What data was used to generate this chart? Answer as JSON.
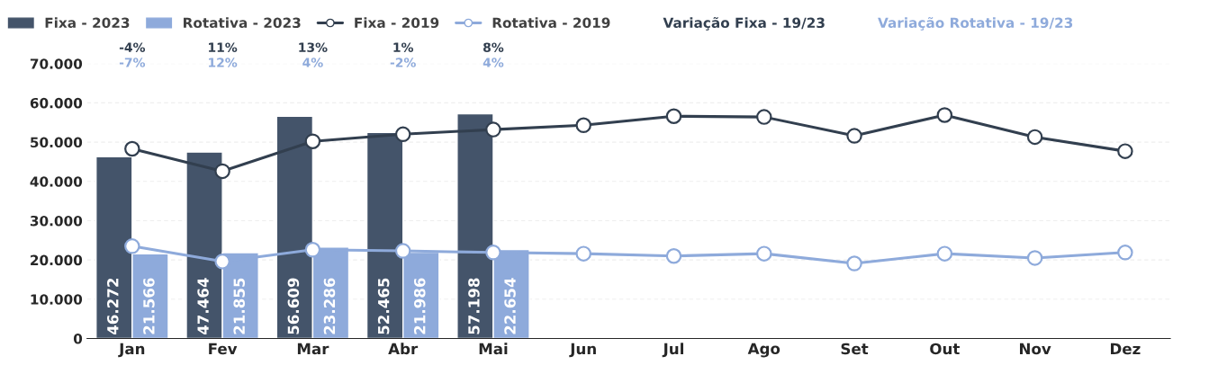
{
  "chart_data": {
    "type": "bar",
    "categories": [
      "Jan",
      "Fev",
      "Mar",
      "Abr",
      "Mai",
      "Jun",
      "Jul",
      "Ago",
      "Set",
      "Out",
      "Nov",
      "Dez"
    ],
    "ylim": [
      0,
      70000
    ],
    "yticks": [
      {
        "value": 0,
        "label": "0"
      },
      {
        "value": 10000,
        "label": "10.000"
      },
      {
        "value": 20000,
        "label": "20.000"
      },
      {
        "value": 30000,
        "label": "30.000"
      },
      {
        "value": 40000,
        "label": "40.000"
      },
      {
        "value": 50000,
        "label": "50.000"
      },
      {
        "value": 60000,
        "label": "60.000"
      },
      {
        "value": 70000,
        "label": "70.000"
      }
    ],
    "grid": "y",
    "legend": "top",
    "series": [
      {
        "name": "Fixa - 2023",
        "color": "#44546a",
        "values": [
          46272,
          47464,
          56609,
          52465,
          57198,
          null,
          null,
          null,
          null,
          null,
          null,
          null
        ],
        "value_labels": [
          "46.272",
          "47.464",
          "56.609",
          "52.465",
          "57.198",
          null,
          null,
          null,
          null,
          null,
          null,
          null
        ]
      },
      {
        "name": "Rotativa - 2023",
        "color": "#8eaadb",
        "values": [
          21566,
          21855,
          23286,
          21986,
          22654,
          null,
          null,
          null,
          null,
          null,
          null,
          null
        ],
        "value_labels": [
          "21.566",
          "21.855",
          "23.286",
          "21.986",
          "22.654",
          null,
          null,
          null,
          null,
          null,
          null,
          null
        ]
      },
      {
        "name": "Fixa - 2019",
        "type": "line",
        "color": "#323f4f",
        "marker": "circle",
        "values": [
          48300,
          42600,
          50200,
          52000,
          53200,
          54300,
          56600,
          56400,
          51600,
          56900,
          51300,
          47700
        ]
      },
      {
        "name": "Rotativa - 2019",
        "type": "line",
        "color": "#8eaadb",
        "marker": "circle",
        "values": [
          23500,
          19600,
          22600,
          22300,
          21900,
          21600,
          21000,
          21600,
          19100,
          21600,
          20500,
          21900
        ]
      },
      {
        "name": "Variação Fixa - 19/23",
        "type": "other",
        "color": "#323f4f",
        "values": [
          null,
          null,
          null,
          null,
          null,
          null,
          null,
          null,
          null,
          null,
          null,
          null
        ],
        "value_labels": [
          "-4%",
          "11%",
          "13%",
          "1%",
          "8%",
          null,
          null,
          null,
          null,
          null,
          null,
          null
        ]
      },
      {
        "name": "Variação Rotativa - 19/23",
        "type": "other",
        "color": "#8eaadb",
        "values": [
          null,
          null,
          null,
          null,
          null,
          null,
          null,
          null,
          null,
          null,
          null,
          null
        ],
        "value_labels": [
          "-7%",
          "12%",
          "4%",
          "-2%",
          "4%",
          null,
          null,
          null,
          null,
          null,
          null,
          null
        ]
      }
    ]
  }
}
